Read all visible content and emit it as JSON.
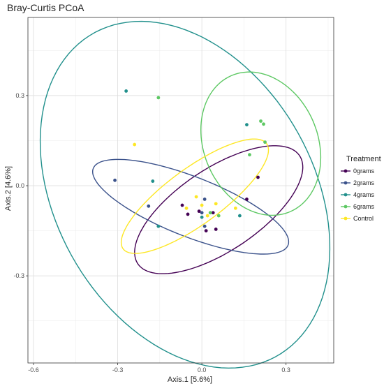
{
  "chart_data": {
    "type": "scatter",
    "title": "Bray-Curtis PCoA",
    "xlabel": "Axis.1   [5.6%]",
    "ylabel": "Axis.2   [4.6%]",
    "xlim": [
      -0.62,
      0.47
    ],
    "ylim": [
      -0.59,
      0.56
    ],
    "xticks": [
      -0.6,
      -0.3,
      0.0,
      0.3
    ],
    "xtick_labels": [
      "-0.6",
      "-0.3",
      "0.0",
      "0.3"
    ],
    "yticks": [
      -0.3,
      0.0,
      0.3
    ],
    "ytick_labels": [
      "-0.3",
      "0.0",
      "0.3"
    ],
    "grid": true,
    "legend": {
      "title": "Treatment",
      "position": "right"
    },
    "series": [
      {
        "name": "0grams",
        "color": "#440154",
        "points": [
          [
            -0.07,
            -0.065
          ],
          [
            -0.05,
            -0.095
          ],
          [
            -0.01,
            -0.085
          ],
          [
            0.015,
            -0.15
          ],
          [
            0.05,
            -0.145
          ],
          [
            0.16,
            -0.045
          ],
          [
            0.2,
            0.028
          ],
          [
            0.04,
            -0.09
          ]
        ],
        "ellipse": {
          "center": [
            0.06,
            -0.08
          ],
          "semi_major": 0.34,
          "semi_minor": 0.14,
          "angle_deg": 31.2
        }
      },
      {
        "name": "2grams",
        "color": "#3b528b",
        "points": [
          [
            -0.31,
            0.018
          ],
          [
            -0.19,
            -0.068
          ],
          [
            0.01,
            -0.045
          ],
          [
            0.01,
            -0.135
          ],
          [
            0.0,
            -0.09
          ]
        ],
        "ellipse": {
          "center": [
            -0.04,
            -0.07
          ],
          "semi_major": 0.37,
          "semi_minor": 0.1,
          "angle_deg": -20
        }
      },
      {
        "name": "4grams",
        "color": "#21908c",
        "points": [
          [
            -0.27,
            0.315
          ],
          [
            -0.175,
            0.015
          ],
          [
            -0.155,
            -0.135
          ],
          [
            0.0,
            -0.105
          ],
          [
            0.135,
            -0.1
          ],
          [
            0.16,
            0.203
          ]
        ],
        "ellipse": {
          "center": [
            -0.06,
            -0.03
          ],
          "semi_major": 0.63,
          "semi_minor": 0.45,
          "angle_deg": -55
        }
      },
      {
        "name": "6grams",
        "color": "#5dc863",
        "points": [
          [
            -0.155,
            0.293
          ],
          [
            0.21,
            0.215
          ],
          [
            0.22,
            0.205
          ],
          [
            0.225,
            0.145
          ],
          [
            0.17,
            0.103
          ],
          [
            0.03,
            -0.09
          ],
          [
            0.06,
            -0.1
          ]
        ],
        "ellipse": {
          "center": [
            0.21,
            0.14
          ],
          "semi_major": 0.25,
          "semi_minor": 0.2,
          "angle_deg": -60
        }
      },
      {
        "name": "Control",
        "color": "#fde725",
        "points": [
          [
            -0.24,
            0.137
          ],
          [
            -0.055,
            -0.075
          ],
          [
            -0.02,
            -0.037
          ],
          [
            0.0,
            -0.065
          ],
          [
            0.05,
            -0.06
          ],
          [
            0.02,
            -0.1
          ],
          [
            0.12,
            -0.075
          ]
        ],
        "ellipse": {
          "center": [
            -0.025,
            -0.035
          ],
          "semi_major": 0.31,
          "semi_minor": 0.095,
          "angle_deg": 34
        }
      }
    ]
  }
}
